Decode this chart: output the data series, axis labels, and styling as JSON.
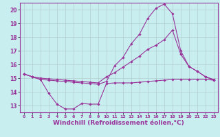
{
  "background_color": "#c8eef0",
  "line_color": "#993399",
  "grid_color": "#b0cece",
  "xlabel": "Windchill (Refroidissement éolien,°C)",
  "xlabel_fontsize": 6.5,
  "xlim": [
    -0.5,
    23.5
  ],
  "ylim": [
    12.5,
    20.5
  ],
  "yticks": [
    13,
    14,
    15,
    16,
    17,
    18,
    19,
    20
  ],
  "xticks": [
    0,
    1,
    2,
    3,
    4,
    5,
    6,
    7,
    8,
    9,
    10,
    11,
    12,
    13,
    14,
    15,
    16,
    17,
    18,
    19,
    20,
    21,
    22,
    23
  ],
  "series": [
    {
      "x": [
        0,
        1,
        2,
        3,
        4,
        5,
        6,
        7,
        8,
        9,
        10,
        11,
        12,
        13,
        14,
        15,
        16,
        17,
        18,
        19,
        20,
        21,
        22,
        23
      ],
      "y": [
        15.3,
        15.1,
        14.9,
        13.9,
        13.1,
        12.75,
        12.75,
        13.15,
        13.1,
        13.1,
        14.6,
        14.65,
        14.65,
        14.65,
        14.7,
        14.75,
        14.8,
        14.85,
        14.9,
        14.9,
        14.9,
        14.9,
        14.9,
        14.85
      ]
    },
    {
      "x": [
        0,
        1,
        2,
        3,
        4,
        5,
        6,
        7,
        8,
        9,
        10,
        11,
        12,
        13,
        14,
        15,
        16,
        17,
        18,
        19,
        20,
        21,
        22,
        23
      ],
      "y": [
        15.3,
        15.1,
        15.0,
        14.95,
        14.9,
        14.85,
        14.8,
        14.75,
        14.7,
        14.65,
        15.1,
        15.4,
        15.8,
        16.2,
        16.6,
        17.1,
        17.4,
        17.8,
        18.5,
        16.75,
        15.85,
        15.5,
        15.1,
        14.9
      ]
    },
    {
      "x": [
        0,
        1,
        2,
        3,
        4,
        5,
        6,
        7,
        8,
        9,
        10,
        11,
        12,
        13,
        14,
        15,
        16,
        17,
        18,
        19,
        20,
        21,
        22,
        23
      ],
      "y": [
        15.3,
        15.1,
        14.9,
        14.85,
        14.8,
        14.75,
        14.7,
        14.65,
        14.6,
        14.55,
        14.75,
        15.9,
        16.5,
        17.5,
        18.2,
        19.35,
        20.1,
        20.4,
        19.7,
        17.0,
        15.85,
        15.5,
        15.1,
        14.85
      ]
    }
  ]
}
